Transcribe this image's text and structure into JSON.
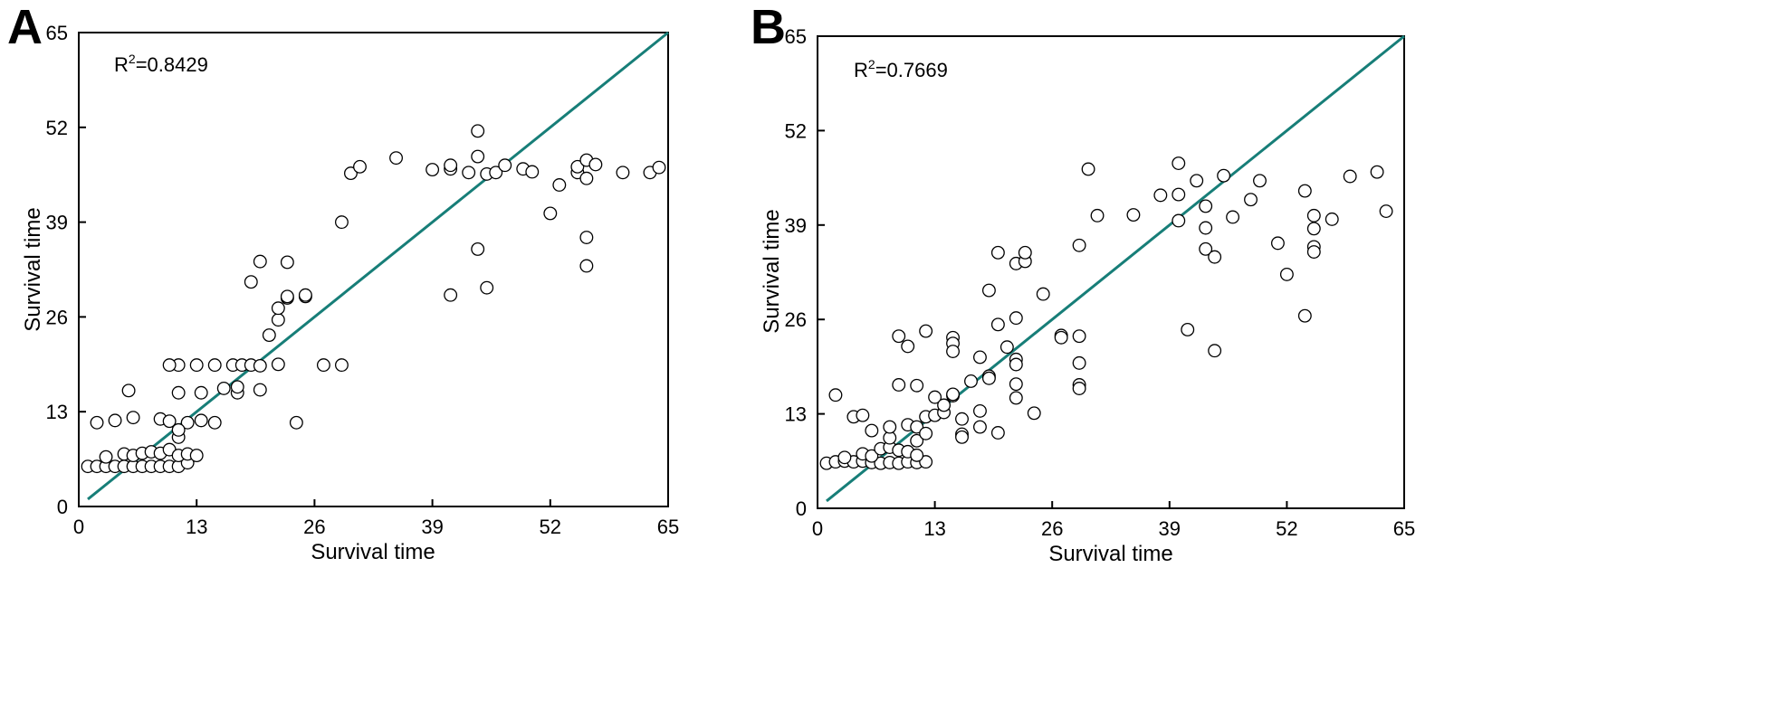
{
  "chart_data": [
    {
      "panel": "A",
      "type": "scatter",
      "title": "",
      "xlabel": "Survival time",
      "ylabel": "Survival time",
      "annotation": {
        "prefix": "R",
        "sup": "2",
        "suffix": "=0.8429"
      },
      "xlim": [
        0,
        65
      ],
      "ylim": [
        0,
        65
      ],
      "xticks": [
        0,
        13,
        26,
        39,
        52,
        65
      ],
      "yticks": [
        0,
        13,
        26,
        39,
        52,
        65
      ],
      "line": [
        [
          1,
          1
        ],
        [
          65,
          65
        ]
      ],
      "line_color": "#177e78",
      "points": [
        [
          1,
          5.5
        ],
        [
          2,
          5.5
        ],
        [
          3,
          5.5
        ],
        [
          4,
          5.5
        ],
        [
          5,
          5.5
        ],
        [
          6,
          5.5
        ],
        [
          7,
          5.5
        ],
        [
          8,
          5.5
        ],
        [
          9,
          5.5
        ],
        [
          10,
          5.5
        ],
        [
          11,
          5.5
        ],
        [
          12,
          6
        ],
        [
          3,
          6.8
        ],
        [
          5,
          7.2
        ],
        [
          6,
          7
        ],
        [
          7,
          7.3
        ],
        [
          8,
          7.5
        ],
        [
          9,
          7.3
        ],
        [
          10,
          7.8
        ],
        [
          11,
          7
        ],
        [
          12,
          7.2
        ],
        [
          13,
          7
        ],
        [
          2,
          11.5
        ],
        [
          4,
          11.8
        ],
        [
          6,
          12.2
        ],
        [
          9,
          12
        ],
        [
          12,
          11.5
        ],
        [
          13.5,
          11.8
        ],
        [
          15,
          11.5
        ],
        [
          10,
          11.7
        ],
        [
          11,
          9.5
        ],
        [
          11,
          10.5
        ],
        [
          5.5,
          15.9
        ],
        [
          11,
          15.6
        ],
        [
          13.5,
          15.6
        ],
        [
          16,
          16.2
        ],
        [
          17.5,
          15.6
        ],
        [
          20,
          16
        ],
        [
          17.5,
          16.4
        ],
        [
          11,
          19.4
        ],
        [
          13,
          19.4
        ],
        [
          15,
          19.4
        ],
        [
          17,
          19.4
        ],
        [
          18,
          19.4
        ],
        [
          19,
          19.4
        ],
        [
          20,
          19.3
        ],
        [
          22,
          19.5
        ],
        [
          27,
          19.4
        ],
        [
          29,
          19.4
        ],
        [
          10,
          19.4
        ],
        [
          21,
          23.5
        ],
        [
          22,
          25.6
        ],
        [
          22,
          27.2
        ],
        [
          23,
          28.6
        ],
        [
          23,
          28.8
        ],
        [
          25,
          28.8
        ],
        [
          25,
          29
        ],
        [
          24,
          11.5
        ],
        [
          19,
          30.8
        ],
        [
          20,
          33.6
        ],
        [
          23,
          33.5
        ],
        [
          29,
          39
        ],
        [
          30,
          45.7
        ],
        [
          31,
          46.6
        ],
        [
          35,
          47.8
        ],
        [
          39,
          46.2
        ],
        [
          41,
          46.3
        ],
        [
          41,
          46.8
        ],
        [
          43,
          45.8
        ],
        [
          44,
          48
        ],
        [
          45,
          45.6
        ],
        [
          46,
          45.8
        ],
        [
          47,
          46.8
        ],
        [
          49,
          46.3
        ],
        [
          50,
          45.9
        ],
        [
          44,
          51.5
        ],
        [
          52,
          40.2
        ],
        [
          53,
          44.1
        ],
        [
          55,
          45.8
        ],
        [
          55,
          46.6
        ],
        [
          56,
          47.5
        ],
        [
          56,
          45
        ],
        [
          57,
          46.9
        ],
        [
          60,
          45.8
        ],
        [
          63,
          45.8
        ],
        [
          64,
          46.5
        ],
        [
          56,
          36.9
        ],
        [
          56,
          33
        ],
        [
          44,
          35.3
        ],
        [
          45,
          30
        ],
        [
          41,
          29
        ]
      ]
    },
    {
      "panel": "B",
      "type": "scatter",
      "title": "",
      "xlabel": "Survival time",
      "ylabel": "Survival time",
      "annotation": {
        "prefix": "R",
        "sup": "2",
        "suffix": "=0.7669"
      },
      "xlim": [
        0,
        65
      ],
      "ylim": [
        0,
        65
      ],
      "xticks": [
        0,
        13,
        26,
        39,
        52,
        65
      ],
      "yticks": [
        0,
        13,
        26,
        39,
        52,
        65
      ],
      "line": [
        [
          1,
          1
        ],
        [
          65,
          65
        ]
      ],
      "line_color": "#177e78",
      "points": [
        [
          1,
          6.2
        ],
        [
          2,
          6.4
        ],
        [
          3,
          6.5
        ],
        [
          4,
          6.4
        ],
        [
          5,
          6.5
        ],
        [
          6,
          6.3
        ],
        [
          7,
          6.2
        ],
        [
          8,
          6.3
        ],
        [
          9,
          6.2
        ],
        [
          10,
          6.4
        ],
        [
          11,
          6.3
        ],
        [
          12,
          6.4
        ],
        [
          3,
          7
        ],
        [
          5,
          7.5
        ],
        [
          6,
          7.2
        ],
        [
          7,
          8.2
        ],
        [
          8,
          8.4
        ],
        [
          9,
          8
        ],
        [
          10,
          7.8
        ],
        [
          11,
          7.3
        ],
        [
          8,
          9.7
        ],
        [
          11,
          9.3
        ],
        [
          2,
          15.6
        ],
        [
          4,
          12.6
        ],
        [
          5,
          12.8
        ],
        [
          6,
          10.7
        ],
        [
          8,
          11.2
        ],
        [
          10,
          11.5
        ],
        [
          11,
          11.2
        ],
        [
          12,
          10.3
        ],
        [
          12,
          12.6
        ],
        [
          13,
          12.8
        ],
        [
          14,
          13.2
        ],
        [
          13,
          15.3
        ],
        [
          14,
          14.2
        ],
        [
          15,
          15.5
        ],
        [
          15,
          15.7
        ],
        [
          16,
          12.3
        ],
        [
          16,
          10.2
        ],
        [
          16,
          9.8
        ],
        [
          18,
          11.2
        ],
        [
          18,
          13.4
        ],
        [
          17,
          17.5
        ],
        [
          19,
          18.2
        ],
        [
          19,
          17.9
        ],
        [
          20,
          10.4
        ],
        [
          24,
          13.1
        ],
        [
          9,
          17
        ],
        [
          11,
          16.9
        ],
        [
          9,
          23.7
        ],
        [
          10,
          22.3
        ],
        [
          12,
          24.4
        ],
        [
          15,
          23.5
        ],
        [
          15,
          22.7
        ],
        [
          15,
          21.6
        ],
        [
          18,
          20.8
        ],
        [
          21,
          22.2
        ],
        [
          22,
          20.5
        ],
        [
          22,
          19.8
        ],
        [
          22,
          17.1
        ],
        [
          22,
          15.2
        ],
        [
          20,
          25.3
        ],
        [
          22,
          26.2
        ],
        [
          19,
          30
        ],
        [
          20,
          35.2
        ],
        [
          22,
          33.7
        ],
        [
          23,
          34
        ],
        [
          23,
          35.2
        ],
        [
          25,
          29.5
        ],
        [
          27,
          23.8
        ],
        [
          27,
          23.5
        ],
        [
          29,
          23.7
        ],
        [
          29,
          36.2
        ],
        [
          29,
          20
        ],
        [
          29,
          17
        ],
        [
          29,
          16.5
        ],
        [
          30,
          46.7
        ],
        [
          31,
          40.3
        ],
        [
          35,
          40.4
        ],
        [
          38,
          43.1
        ],
        [
          40,
          43.2
        ],
        [
          40,
          47.5
        ],
        [
          40,
          39.6
        ],
        [
          42,
          45.1
        ],
        [
          43,
          41.6
        ],
        [
          43,
          38.6
        ],
        [
          43,
          35.7
        ],
        [
          44,
          34.6
        ],
        [
          44,
          21.7
        ],
        [
          41,
          24.6
        ],
        [
          45,
          45.8
        ],
        [
          46,
          40.1
        ],
        [
          48,
          42.5
        ],
        [
          49,
          45.1
        ],
        [
          51,
          36.5
        ],
        [
          52,
          32.2
        ],
        [
          54,
          43.7
        ],
        [
          54,
          26.5
        ],
        [
          55,
          40.3
        ],
        [
          55,
          38.5
        ],
        [
          55,
          36
        ],
        [
          55,
          35.3
        ],
        [
          57,
          39.8
        ],
        [
          59,
          45.7
        ],
        [
          62,
          46.3
        ],
        [
          63,
          40.9
        ]
      ]
    }
  ]
}
